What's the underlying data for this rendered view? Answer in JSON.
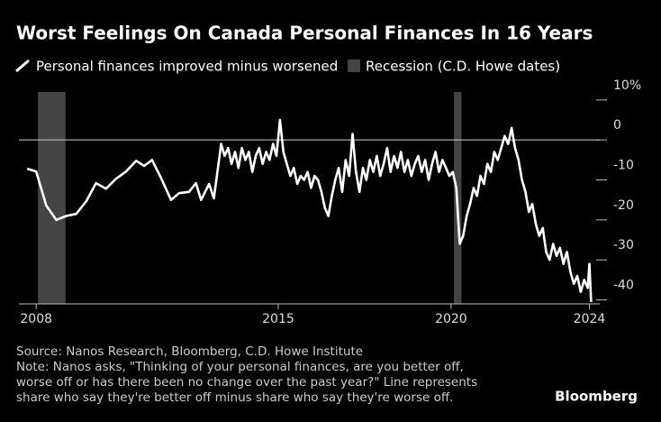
{
  "chart_data": {
    "type": "line",
    "title": "Worst Feelings On Canada Personal Finances In 16 Years",
    "source": "Source: Nanos Research, Bloomberg, C.D. Howe Institute",
    "note_lines": [
      "Note: Nanos asks, \"Thinking of your personal finances, are you better off,",
      "worse off or has there been no change over the past year?\" Line represents",
      "share who say they're better off minus share who say they're worse off."
    ],
    "brand": "Bloomberg",
    "xlim": [
      2007.5,
      2024.3
    ],
    "xticks": [
      2008,
      2015,
      2020,
      2024
    ],
    "ylim": [
      -41,
      12
    ],
    "yticks": [
      {
        "value": 10,
        "label": "10%"
      },
      0,
      -10,
      -20,
      -30,
      -40
    ],
    "reference_line": 0,
    "recessions": {
      "name": "Recession (C.D. Howe dates)",
      "color": "#444444",
      "ranges": [
        [
          2008.05,
          2008.85
        ],
        [
          2020.08,
          2020.3
        ]
      ]
    },
    "series": [
      {
        "name": "Personal finances improved minus worsened",
        "color": "#ffffff",
        "x": [
          2007.74,
          2008.0,
          2008.29,
          2008.58,
          2008.87,
          2009.16,
          2009.45,
          2009.73,
          2010.02,
          2010.31,
          2010.6,
          2010.89,
          2011.12,
          2011.35,
          2011.61,
          2011.9,
          2012.13,
          2012.42,
          2012.62,
          2012.77,
          2013.0,
          2013.14,
          2013.35,
          2013.45,
          2013.55,
          2013.65,
          2013.75,
          2013.85,
          2013.95,
          2014.05,
          2014.15,
          2014.25,
          2014.35,
          2014.45,
          2014.55,
          2014.65,
          2014.75,
          2014.85,
          2014.95,
          2015.05,
          2015.15,
          2015.25,
          2015.35,
          2015.45,
          2015.55,
          2015.65,
          2015.75,
          2015.85,
          2015.95,
          2016.05,
          2016.15,
          2016.25,
          2016.35,
          2016.45,
          2016.55,
          2016.65,
          2016.75,
          2016.85,
          2016.95,
          2017.05,
          2017.15,
          2017.25,
          2017.35,
          2017.45,
          2017.55,
          2017.65,
          2017.75,
          2017.85,
          2017.95,
          2018.05,
          2018.15,
          2018.25,
          2018.35,
          2018.45,
          2018.55,
          2018.65,
          2018.75,
          2018.85,
          2018.95,
          2019.05,
          2019.15,
          2019.25,
          2019.35,
          2019.45,
          2019.55,
          2019.65,
          2019.75,
          2019.85,
          2019.95,
          2020.05,
          2020.15,
          2020.25,
          2020.35,
          2020.45,
          2020.55,
          2020.65,
          2020.75,
          2020.85,
          2020.95,
          2021.05,
          2021.15,
          2021.25,
          2021.35,
          2021.45,
          2021.55,
          2021.65,
          2021.75,
          2021.85,
          2021.95,
          2022.05,
          2022.15,
          2022.25,
          2022.35,
          2022.45,
          2022.55,
          2022.65,
          2022.75,
          2022.85,
          2022.95,
          2023.05,
          2023.15,
          2023.25,
          2023.35,
          2023.45,
          2023.55,
          2023.65,
          2023.75,
          2023.85,
          2023.95,
          2024.0,
          2024.05
        ],
        "values": [
          -7.2,
          -7.9,
          -16.4,
          -20,
          -19,
          -18.5,
          -15.3,
          -10.8,
          -12.2,
          -9.7,
          -7.9,
          -5.2,
          -6.5,
          -5,
          -9.5,
          -15,
          -13.3,
          -13,
          -10.8,
          -15,
          -11,
          -14.6,
          -1,
          -4,
          -2,
          -6,
          -3,
          -7,
          -2,
          -5,
          -3,
          -8,
          -4,
          -2,
          -6,
          -3,
          -5,
          -1,
          -4,
          5,
          -3,
          -6,
          -9,
          -7,
          -11,
          -9,
          -10,
          -8,
          -12,
          -9,
          -10,
          -13,
          -17,
          -19,
          -14,
          -10,
          -7,
          -13,
          -5,
          -9,
          1.5,
          -8,
          -13,
          -7,
          -10,
          -5,
          -8,
          -4,
          -9,
          -6,
          -2,
          -8,
          -4,
          -7,
          -3,
          -8,
          -5,
          -9,
          -6,
          -4,
          -8,
          -5,
          -10,
          -6,
          -3,
          -8,
          -5,
          -7,
          -9,
          -8,
          -12,
          -26,
          -24,
          -19,
          -16,
          -12,
          -14,
          -9,
          -11,
          -6,
          -8,
          -3,
          -5,
          -2,
          1,
          -1,
          3,
          -2,
          -5,
          -10,
          -13,
          -18,
          -16,
          -21,
          -24,
          -22,
          -28,
          -30,
          -26,
          -29,
          -27,
          -31,
          -28,
          -33,
          -36,
          -34,
          -38,
          -35,
          -37,
          -31,
          -40.5
        ]
      }
    ]
  }
}
